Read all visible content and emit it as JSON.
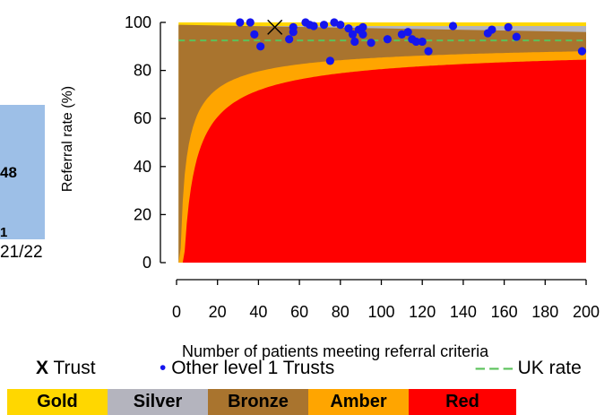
{
  "left_panel": {
    "value_label": "48",
    "small_label": "1",
    "x_tick": "21/22"
  },
  "chart_data": {
    "type": "scatter",
    "title": "",
    "xlabel": "Number of patients meeting referral criteria",
    "ylabel": "Referral rate (%)",
    "xlim": [
      0,
      200
    ],
    "ylim": [
      0,
      100
    ],
    "x_ticks": [
      "0",
      "20",
      "40",
      "60",
      "80",
      "100",
      "120",
      "140",
      "160",
      "180",
      "200"
    ],
    "y_ticks": [
      "0",
      "20",
      "40",
      "60",
      "80",
      "100"
    ],
    "uk_rate": 92.5,
    "trust_point": {
      "x": 48,
      "y": 98
    },
    "other_trusts": [
      {
        "x": 31,
        "y": 100
      },
      {
        "x": 36,
        "y": 100
      },
      {
        "x": 38,
        "y": 95
      },
      {
        "x": 41,
        "y": 90
      },
      {
        "x": 55,
        "y": 93
      },
      {
        "x": 57,
        "y": 98
      },
      {
        "x": 57,
        "y": 96
      },
      {
        "x": 63,
        "y": 100
      },
      {
        "x": 65,
        "y": 99
      },
      {
        "x": 67,
        "y": 98.5
      },
      {
        "x": 72,
        "y": 99
      },
      {
        "x": 75,
        "y": 84
      },
      {
        "x": 77,
        "y": 100
      },
      {
        "x": 80,
        "y": 99
      },
      {
        "x": 84,
        "y": 97.5
      },
      {
        "x": 86,
        "y": 95
      },
      {
        "x": 87,
        "y": 92
      },
      {
        "x": 89,
        "y": 97
      },
      {
        "x": 91,
        "y": 98
      },
      {
        "x": 91,
        "y": 95
      },
      {
        "x": 95,
        "y": 91.5
      },
      {
        "x": 103,
        "y": 93
      },
      {
        "x": 110,
        "y": 95
      },
      {
        "x": 113,
        "y": 96
      },
      {
        "x": 115,
        "y": 93
      },
      {
        "x": 117,
        "y": 92
      },
      {
        "x": 120,
        "y": 92
      },
      {
        "x": 123,
        "y": 88
      },
      {
        "x": 135,
        "y": 98.5
      },
      {
        "x": 152,
        "y": 95.5
      },
      {
        "x": 154,
        "y": 97
      },
      {
        "x": 162,
        "y": 98
      },
      {
        "x": 166,
        "y": 94
      },
      {
        "x": 198,
        "y": 88
      }
    ],
    "bands": {
      "gold_top": 100,
      "silver_top": 98.5,
      "bronze_top": 96,
      "amber_at_200": 88,
      "red_at_200": 84.5
    },
    "legend": {
      "trust_marker": "X",
      "trust_label": "Trust",
      "others_marker": "•",
      "others_label": "Other level 1 Trusts",
      "uk_marker": "– – –",
      "uk_label": "UK rate"
    },
    "categories": [
      "Gold",
      "Silver",
      "Bronze",
      "Amber",
      "Red"
    ]
  },
  "colors": {
    "gold": "#ffd700",
    "silver": "#b4b4be",
    "bronze": "#a9742e",
    "amber": "#ffa500",
    "red": "#ff0000",
    "dots": "#1515ee",
    "uk_line": "#5bc25b",
    "left_panel": "#9dbfe7"
  }
}
